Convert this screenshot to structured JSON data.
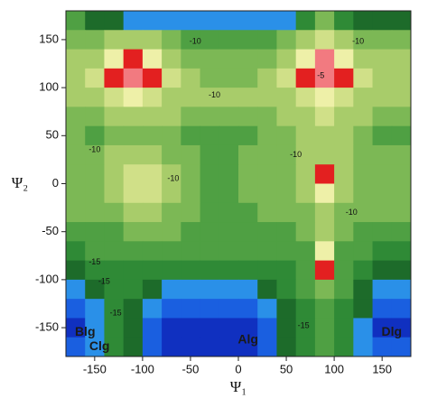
{
  "chart_data": {
    "type": "contour",
    "x_label": "Ψ₁",
    "y_label": "Ψ₂",
    "xlim": [
      -180,
      180
    ],
    "ylim": [
      -180,
      180
    ],
    "xticks": [
      -150,
      -100,
      -50,
      0,
      50,
      100,
      150
    ],
    "yticks": [
      -150,
      -100,
      -50,
      0,
      50,
      100,
      150
    ],
    "x": [
      -170,
      -150,
      -130,
      -110,
      -90,
      -70,
      -50,
      -30,
      -10,
      10,
      30,
      50,
      70,
      90,
      110,
      130,
      150,
      170
    ],
    "y": [
      170,
      150,
      130,
      110,
      90,
      70,
      50,
      30,
      10,
      -10,
      -30,
      -50,
      -70,
      -90,
      -110,
      -130,
      -150,
      -170
    ],
    "z": [
      [
        -13,
        -17,
        -17,
        -19,
        -20,
        -20,
        -20,
        -20,
        -20,
        -20,
        -20,
        -19,
        -16,
        -12,
        -16,
        -18,
        -18,
        -17
      ],
      [
        -11,
        -12,
        -10,
        -9,
        -10,
        -12,
        -13,
        -13,
        -13,
        -13,
        -13,
        -12,
        -10,
        -7,
        -9,
        -11,
        -12,
        -12
      ],
      [
        -10,
        -9,
        -5,
        -3,
        -5,
        -9,
        -11,
        -12,
        -12,
        -12,
        -11,
        -9,
        -5,
        -2,
        -5,
        -9,
        -10,
        -10
      ],
      [
        -10,
        -8,
        -4,
        -2,
        -4,
        -8,
        -10,
        -11,
        -11,
        -11,
        -10,
        -8,
        -4,
        -1,
        -4,
        -8,
        -10,
        -10
      ],
      [
        -10,
        -9,
        -7,
        -6,
        -7,
        -9,
        -10,
        -10,
        -10,
        -10,
        -10,
        -9,
        -7,
        -5,
        -7,
        -9,
        -10,
        -10
      ],
      [
        -11,
        -11,
        -10,
        -10,
        -10,
        -10,
        -11,
        -11,
        -11,
        -11,
        -11,
        -10,
        -9,
        -8,
        -9,
        -10,
        -11,
        -11
      ],
      [
        -12,
        -14,
        -12,
        -11,
        -11,
        -12,
        -14,
        -14,
        -14,
        -13,
        -12,
        -11,
        -10,
        -9,
        -10,
        -12,
        -14,
        -13
      ],
      [
        -12,
        -12,
        -10,
        -9,
        -9,
        -11,
        -12,
        -13,
        -13,
        -12,
        -11,
        -11,
        -10,
        -9,
        -10,
        -11,
        -12,
        -12
      ],
      [
        -12,
        -11,
        -9,
        -8,
        -8,
        -10,
        -12,
        -13,
        -13,
        -12,
        -12,
        -11,
        -10,
        -4,
        -10,
        -11,
        -12,
        -12
      ],
      [
        -12,
        -11,
        -9,
        -8,
        -8,
        -10,
        -12,
        -13,
        -13,
        -12,
        -12,
        -11,
        -10,
        -5,
        -10,
        -11,
        -12,
        -12
      ],
      [
        -12,
        -12,
        -11,
        -10,
        -10,
        -11,
        -12,
        -13,
        -13,
        -13,
        -12,
        -12,
        -11,
        -9,
        -11,
        -12,
        -12,
        -12
      ],
      [
        -13,
        -13,
        -13,
        -12,
        -12,
        -12,
        -13,
        -13,
        -13,
        -13,
        -13,
        -13,
        -12,
        -9,
        -12,
        -13,
        -13,
        -13
      ],
      [
        -15,
        -14,
        -14,
        -14,
        -14,
        -14,
        -14,
        -14,
        -14,
        -14,
        -14,
        -14,
        -13,
        -6,
        -13,
        -14,
        -15,
        -15
      ],
      [
        -18,
        -16,
        -15,
        -15,
        -16,
        -16,
        -16,
        -16,
        -16,
        -16,
        -16,
        -15,
        -13,
        -3,
        -13,
        -15,
        -17,
        -18
      ],
      [
        -20,
        -18,
        -15,
        -16,
        -18,
        -19,
        -19,
        -19,
        -19,
        -19,
        -18,
        -16,
        -14,
        -11,
        -14,
        -17,
        -20,
        -20
      ],
      [
        -21,
        -19,
        -16,
        -17,
        -20,
        -21,
        -21,
        -21,
        -21,
        -21,
        -20,
        -17,
        -15,
        -13,
        -15,
        -18,
        -21,
        -21
      ],
      [
        -23,
        -20,
        -16,
        -18,
        -22,
        -23,
        -24,
        -24,
        -24,
        -23,
        -21,
        -18,
        -16,
        -14,
        -16,
        -19,
        -23,
        -23
      ],
      [
        -22,
        -19,
        -16,
        -18,
        -22,
        -23,
        -24,
        -24,
        -24,
        -23,
        -21,
        -18,
        -16,
        -14,
        -16,
        -19,
        -22,
        -22
      ]
    ],
    "levels": [
      -22,
      -20,
      -18,
      -16,
      -14,
      -12,
      -10,
      -8,
      -6,
      -4,
      -2
    ],
    "colors": [
      "#1030c0",
      "#1a5fe0",
      "#2a90e8",
      "#1d6b2a",
      "#2f8a36",
      "#4fa043",
      "#7cb855",
      "#a8cc6a",
      "#d0e088",
      "#eef0a8",
      "#e32020",
      "#f27a80"
    ],
    "annotations": [
      "-10",
      "-10",
      "-10",
      "-10",
      "-10",
      "-10",
      "-10",
      "-5",
      "-15",
      "-15",
      "-15",
      "-15"
    ],
    "regions": [
      "Blg",
      "Clg",
      "Alg",
      "Dlg"
    ]
  }
}
